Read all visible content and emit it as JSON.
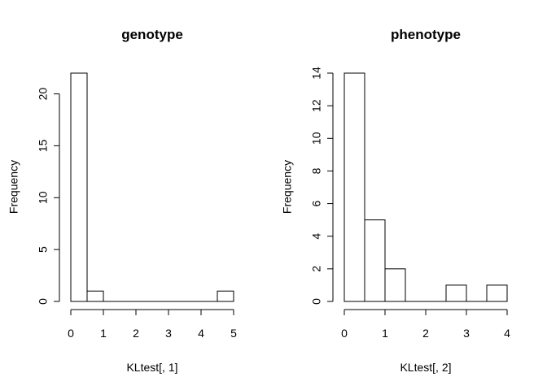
{
  "chart_data": [
    {
      "type": "bar",
      "title": "genotype",
      "xlabel": "KLtest[, 1]",
      "ylabel": "Frequency",
      "xlim": [
        0,
        5
      ],
      "ylim": [
        0,
        22
      ],
      "xticks": [
        0,
        1,
        2,
        3,
        4,
        5
      ],
      "yticks": [
        0,
        5,
        10,
        15,
        20
      ],
      "bins": [
        {
          "x0": 0.0,
          "x1": 0.5,
          "count": 22
        },
        {
          "x0": 0.5,
          "x1": 1.0,
          "count": 1
        },
        {
          "x0": 1.0,
          "x1": 1.5,
          "count": 0
        },
        {
          "x0": 1.5,
          "x1": 2.0,
          "count": 0
        },
        {
          "x0": 2.0,
          "x1": 2.5,
          "count": 0
        },
        {
          "x0": 2.5,
          "x1": 3.0,
          "count": 0
        },
        {
          "x0": 3.0,
          "x1": 3.5,
          "count": 0
        },
        {
          "x0": 3.5,
          "x1": 4.0,
          "count": 0
        },
        {
          "x0": 4.0,
          "x1": 4.5,
          "count": 0
        },
        {
          "x0": 4.5,
          "x1": 5.0,
          "count": 1
        }
      ]
    },
    {
      "type": "bar",
      "title": "phenotype",
      "xlabel": "KLtest[, 2]",
      "ylabel": "Frequency",
      "xlim": [
        0,
        4
      ],
      "ylim": [
        0,
        14
      ],
      "xticks": [
        0,
        1,
        2,
        3,
        4
      ],
      "yticks": [
        0,
        2,
        4,
        6,
        8,
        10,
        12,
        14
      ],
      "bins": [
        {
          "x0": 0.0,
          "x1": 0.5,
          "count": 14
        },
        {
          "x0": 0.5,
          "x1": 1.0,
          "count": 5
        },
        {
          "x0": 1.0,
          "x1": 1.5,
          "count": 2
        },
        {
          "x0": 1.5,
          "x1": 2.0,
          "count": 0
        },
        {
          "x0": 2.0,
          "x1": 2.5,
          "count": 0
        },
        {
          "x0": 2.5,
          "x1": 3.0,
          "count": 1
        },
        {
          "x0": 3.0,
          "x1": 3.5,
          "count": 0
        },
        {
          "x0": 3.5,
          "x1": 4.0,
          "count": 1
        }
      ]
    }
  ]
}
